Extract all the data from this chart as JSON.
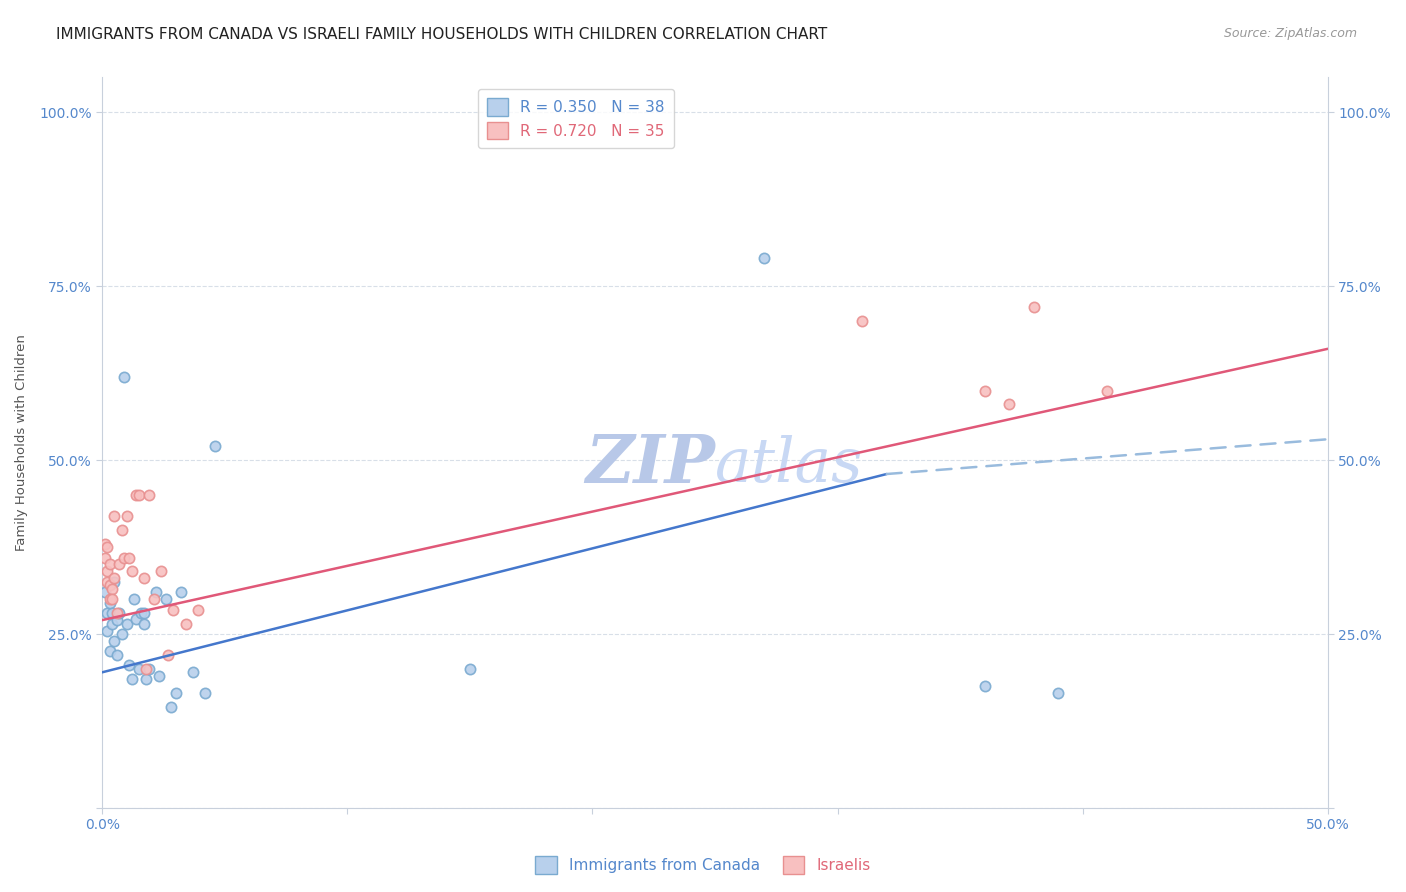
{
  "title": "IMMIGRANTS FROM CANADA VS ISRAELI FAMILY HOUSEHOLDS WITH CHILDREN CORRELATION CHART",
  "source": "Source: ZipAtlas.com",
  "ylabel": "Family Households with Children",
  "xlim": [
    0.0,
    0.5
  ],
  "ylim": [
    0.0,
    1.05
  ],
  "xticks": [
    0.0,
    0.1,
    0.2,
    0.3,
    0.4,
    0.5
  ],
  "yticks": [
    0.0,
    0.25,
    0.5,
    0.75,
    1.0
  ],
  "xticklabels": [
    "0.0%",
    "",
    "",
    "",
    "",
    "50.0%"
  ],
  "yticklabels": [
    "",
    "25.0%",
    "50.0%",
    "75.0%",
    "100.0%"
  ],
  "legend_entries": [
    {
      "label": "R = 0.350   N = 38",
      "color": "#5588cc"
    },
    {
      "label": "R = 0.720   N = 35",
      "color": "#e06878"
    }
  ],
  "bottom_legend": [
    {
      "label": "Immigrants from Canada",
      "color": "#5588cc"
    },
    {
      "label": "Israelis",
      "color": "#e06878"
    }
  ],
  "blue_scatter": [
    [
      0.001,
      0.31
    ],
    [
      0.002,
      0.28
    ],
    [
      0.002,
      0.255
    ],
    [
      0.003,
      0.295
    ],
    [
      0.003,
      0.225
    ],
    [
      0.004,
      0.265
    ],
    [
      0.004,
      0.28
    ],
    [
      0.005,
      0.325
    ],
    [
      0.005,
      0.24
    ],
    [
      0.006,
      0.27
    ],
    [
      0.006,
      0.22
    ],
    [
      0.007,
      0.28
    ],
    [
      0.008,
      0.25
    ],
    [
      0.009,
      0.62
    ],
    [
      0.01,
      0.265
    ],
    [
      0.011,
      0.205
    ],
    [
      0.012,
      0.185
    ],
    [
      0.013,
      0.3
    ],
    [
      0.014,
      0.272
    ],
    [
      0.015,
      0.2
    ],
    [
      0.016,
      0.28
    ],
    [
      0.017,
      0.28
    ],
    [
      0.017,
      0.265
    ],
    [
      0.018,
      0.185
    ],
    [
      0.019,
      0.2
    ],
    [
      0.022,
      0.31
    ],
    [
      0.023,
      0.19
    ],
    [
      0.026,
      0.3
    ],
    [
      0.028,
      0.145
    ],
    [
      0.03,
      0.165
    ],
    [
      0.032,
      0.31
    ],
    [
      0.037,
      0.195
    ],
    [
      0.042,
      0.165
    ],
    [
      0.046,
      0.52
    ],
    [
      0.15,
      0.2
    ],
    [
      0.27,
      0.79
    ],
    [
      0.36,
      0.175
    ],
    [
      0.39,
      0.165
    ]
  ],
  "pink_scatter": [
    [
      0.001,
      0.36
    ],
    [
      0.001,
      0.38
    ],
    [
      0.002,
      0.34
    ],
    [
      0.002,
      0.375
    ],
    [
      0.002,
      0.325
    ],
    [
      0.003,
      0.3
    ],
    [
      0.003,
      0.32
    ],
    [
      0.003,
      0.35
    ],
    [
      0.004,
      0.315
    ],
    [
      0.004,
      0.3
    ],
    [
      0.005,
      0.42
    ],
    [
      0.005,
      0.33
    ],
    [
      0.006,
      0.28
    ],
    [
      0.007,
      0.35
    ],
    [
      0.008,
      0.4
    ],
    [
      0.009,
      0.36
    ],
    [
      0.01,
      0.42
    ],
    [
      0.011,
      0.36
    ],
    [
      0.012,
      0.34
    ],
    [
      0.014,
      0.45
    ],
    [
      0.015,
      0.45
    ],
    [
      0.017,
      0.33
    ],
    [
      0.018,
      0.2
    ],
    [
      0.019,
      0.45
    ],
    [
      0.021,
      0.3
    ],
    [
      0.024,
      0.34
    ],
    [
      0.027,
      0.22
    ],
    [
      0.029,
      0.285
    ],
    [
      0.034,
      0.265
    ],
    [
      0.039,
      0.285
    ],
    [
      0.31,
      0.7
    ],
    [
      0.36,
      0.6
    ],
    [
      0.37,
      0.58
    ],
    [
      0.38,
      0.72
    ],
    [
      0.41,
      0.6
    ]
  ],
  "blue_line_solid": {
    "x": [
      0.0,
      0.32
    ],
    "y": [
      0.195,
      0.48
    ]
  },
  "blue_line_dash": {
    "x": [
      0.32,
      0.5
    ],
    "y": [
      0.48,
      0.53
    ]
  },
  "pink_line": {
    "x": [
      0.0,
      0.5
    ],
    "y": [
      0.27,
      0.66
    ]
  },
  "scatter_size": 55,
  "title_fontsize": 11,
  "axis_label_fontsize": 9.5,
  "tick_fontsize": 10,
  "legend_fontsize": 11,
  "source_fontsize": 9,
  "background_color": "#ffffff",
  "grid_color": "#d8dfe8",
  "axis_color": "#c8d0dc",
  "tick_color": "#5588cc",
  "title_color": "#222222",
  "watermark_color": "#d0dcf0",
  "watermark_fontsize": 48
}
